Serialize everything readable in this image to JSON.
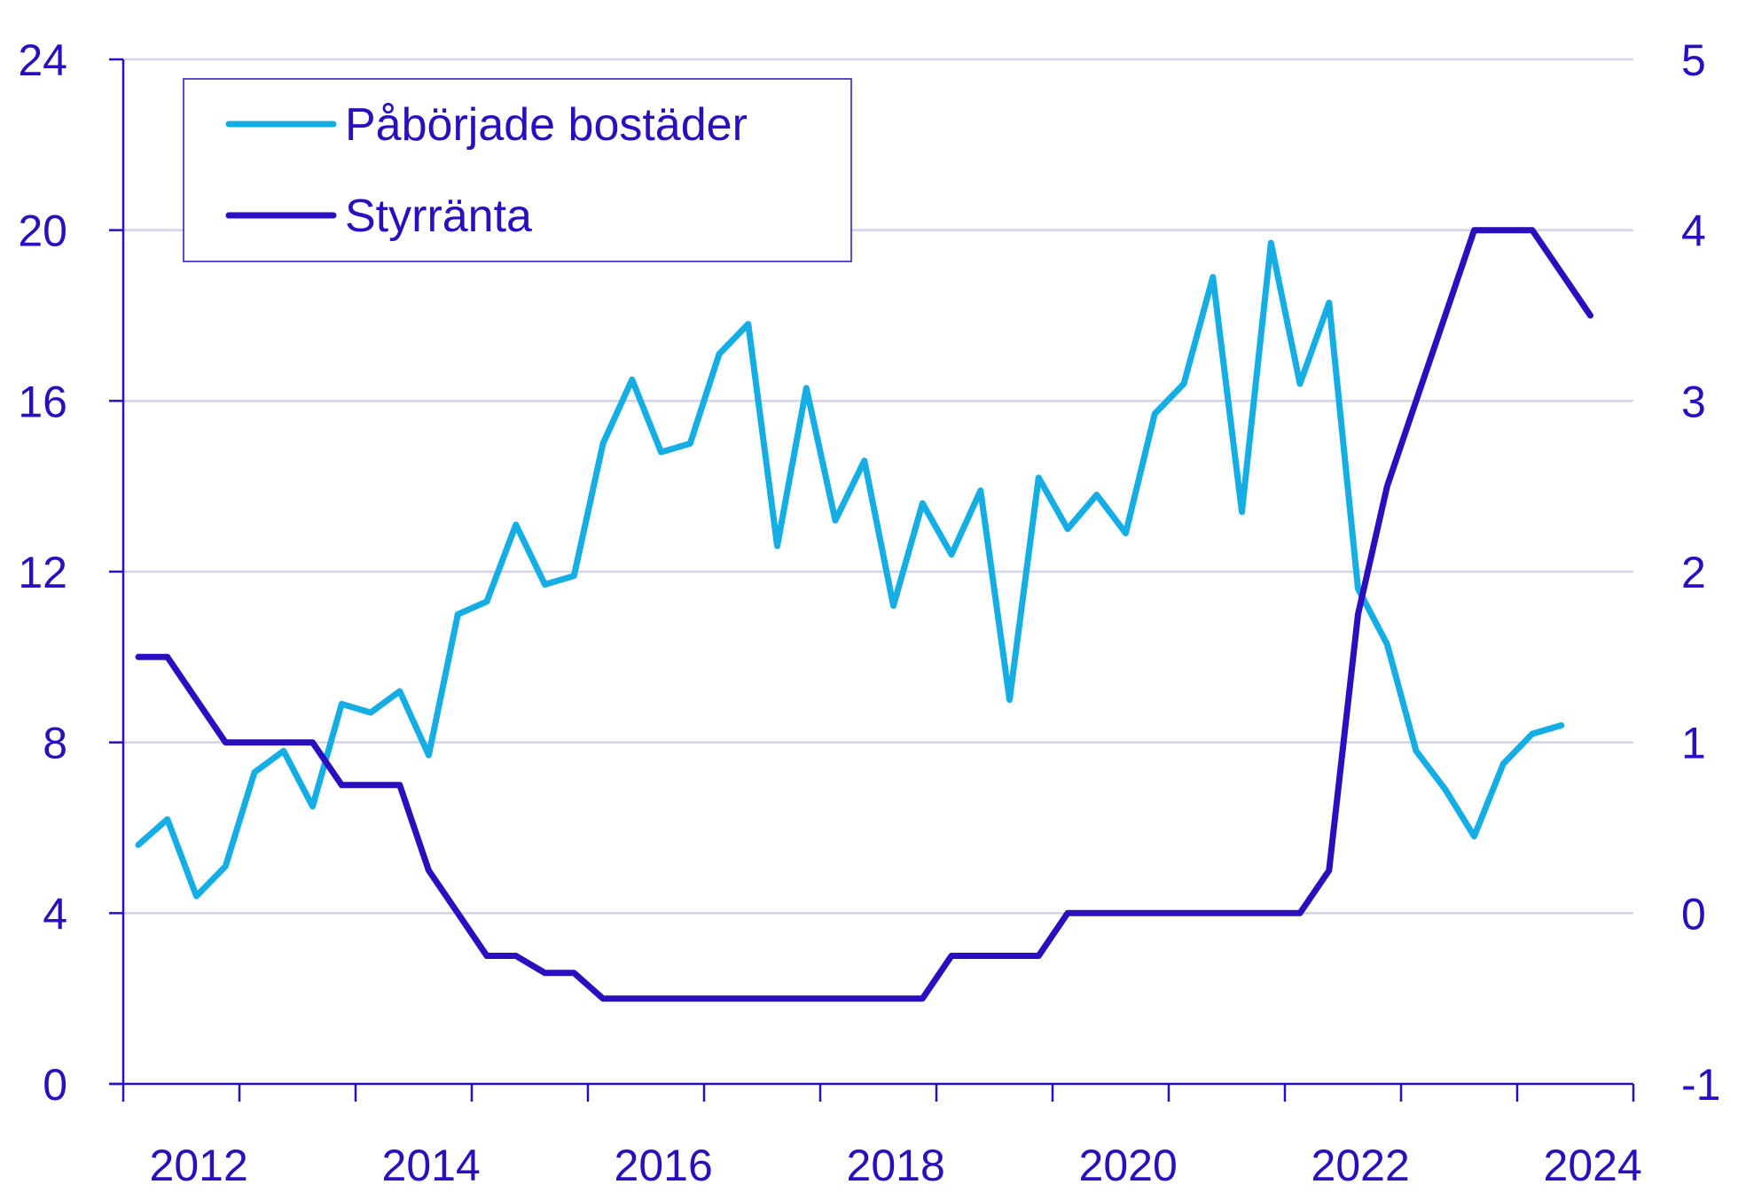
{
  "colors": {
    "axis": "#2a0ebf",
    "grid": "#d2d2e8",
    "text": "#2a0ebf",
    "series_light": "#14aee5",
    "series_dark": "#2a0ebf"
  },
  "legend": {
    "items": [
      {
        "label": "Påbörjade bostäder",
        "color": "#14aee5"
      },
      {
        "label": "Styrränta",
        "color": "#2a0ebf"
      }
    ],
    "placement": "top-left"
  },
  "chart_data": {
    "type": "line",
    "grid": "horizontal",
    "x_axis": {
      "range": [
        2011.95,
        2024.95
      ],
      "tick_labels": [
        "2012",
        "2014",
        "2016",
        "2018",
        "2020",
        "2022",
        "2024"
      ],
      "label_years": [
        2012.6,
        2014.6,
        2016.6,
        2018.6,
        2020.6,
        2022.6,
        2024.6
      ],
      "major_ticks": [
        2011.95,
        2012.95,
        2013.95,
        2014.95,
        2015.95,
        2016.95,
        2017.95,
        2018.95,
        2019.95,
        2020.95,
        2021.95,
        2022.95,
        2023.95,
        2024.95
      ]
    },
    "y_left": {
      "range": [
        0,
        24
      ],
      "ticks": [
        0,
        4,
        8,
        12,
        16,
        20,
        24
      ],
      "tick_labels": [
        "0",
        "4",
        "8",
        "12",
        "16",
        "20",
        "24"
      ]
    },
    "y_right": {
      "range": [
        -1,
        5
      ],
      "ticks": [
        -1,
        0,
        1,
        2,
        3,
        4,
        5
      ],
      "tick_labels": [
        "-1",
        "0",
        "1",
        "2",
        "3",
        "4",
        "5"
      ]
    },
    "series": [
      {
        "name": "Påbörjade bostäder",
        "axis": "left",
        "color": "#14aee5",
        "x": [
          2012.08,
          2012.33,
          2012.58,
          2012.83,
          2013.08,
          2013.33,
          2013.58,
          2013.83,
          2014.08,
          2014.33,
          2014.58,
          2014.83,
          2015.08,
          2015.33,
          2015.58,
          2015.83,
          2016.08,
          2016.33,
          2016.58,
          2016.83,
          2017.08,
          2017.33,
          2017.58,
          2017.83,
          2018.08,
          2018.33,
          2018.58,
          2018.83,
          2019.08,
          2019.33,
          2019.58,
          2019.83,
          2020.08,
          2020.33,
          2020.58,
          2020.83,
          2021.08,
          2021.33,
          2021.58,
          2021.83,
          2022.08,
          2022.33,
          2022.58,
          2022.83,
          2023.08,
          2023.33,
          2023.58,
          2023.83,
          2024.08,
          2024.33
        ],
        "y": [
          5.6,
          6.2,
          4.4,
          5.1,
          7.3,
          7.8,
          6.5,
          8.9,
          8.7,
          9.2,
          7.7,
          11.0,
          11.3,
          13.1,
          11.7,
          11.9,
          15.0,
          16.5,
          14.8,
          15.0,
          17.1,
          17.8,
          12.6,
          16.3,
          13.2,
          14.6,
          11.2,
          13.6,
          12.4,
          13.9,
          9.0,
          14.2,
          13.0,
          13.8,
          12.9,
          15.7,
          16.4,
          18.9,
          13.4,
          19.7,
          16.4,
          18.3,
          11.6,
          10.3,
          7.8,
          6.9,
          5.8,
          7.5,
          8.2,
          8.4
        ]
      },
      {
        "name": "Styrränta",
        "axis": "right",
        "color": "#2a0ebf",
        "x": [
          2012.08,
          2012.33,
          2012.58,
          2012.83,
          2013.08,
          2013.33,
          2013.58,
          2013.83,
          2014.08,
          2014.33,
          2014.58,
          2014.83,
          2015.08,
          2015.33,
          2015.58,
          2015.83,
          2016.08,
          2016.33,
          2016.58,
          2016.83,
          2017.08,
          2017.33,
          2017.58,
          2017.83,
          2018.08,
          2018.33,
          2018.58,
          2018.83,
          2019.08,
          2019.33,
          2019.58,
          2019.83,
          2020.08,
          2020.33,
          2020.58,
          2020.83,
          2021.08,
          2021.33,
          2021.58,
          2021.83,
          2022.08,
          2022.33,
          2022.58,
          2022.83,
          2023.08,
          2023.33,
          2023.58,
          2023.83,
          2024.08,
          2024.33,
          2024.58
        ],
        "y": [
          1.5,
          1.5,
          1.25,
          1.0,
          1.0,
          1.0,
          1.0,
          0.75,
          0.75,
          0.75,
          0.25,
          0.0,
          -0.25,
          -0.25,
          -0.35,
          -0.35,
          -0.5,
          -0.5,
          -0.5,
          -0.5,
          -0.5,
          -0.5,
          -0.5,
          -0.5,
          -0.5,
          -0.5,
          -0.5,
          -0.5,
          -0.25,
          -0.25,
          -0.25,
          -0.25,
          0.0,
          0.0,
          0.0,
          0.0,
          0.0,
          0.0,
          0.0,
          0.0,
          0.0,
          0.25,
          1.75,
          2.5,
          3.0,
          3.5,
          4.0,
          4.0,
          4.0,
          3.75,
          3.5
        ]
      }
    ]
  }
}
